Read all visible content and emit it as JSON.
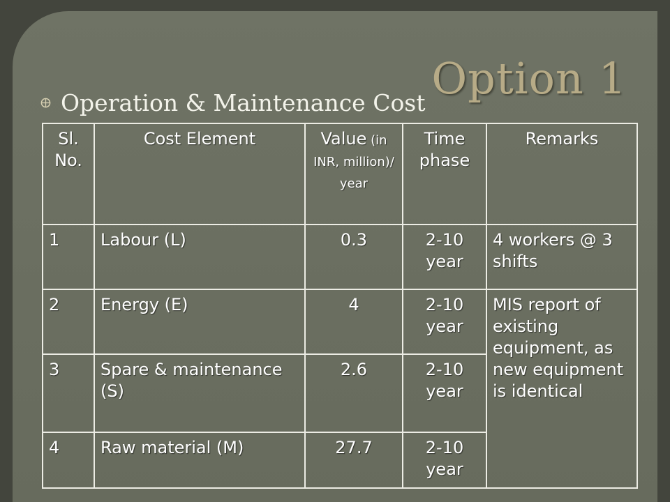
{
  "slide": {
    "title": "Option 1",
    "bullet": {
      "icon": "circle-cross-bullet-icon",
      "text": "Operation & Maintenance Cost"
    },
    "colors": {
      "background": "#6c7062",
      "title": "#b7ab87",
      "text": "#ffffff"
    }
  },
  "table": {
    "headers": {
      "sl_no": "Sl. No.",
      "cost_element": "Cost Element",
      "value_main": "Value",
      "value_unit": " (in INR, million)/ year",
      "time_phase": "Time phase",
      "remarks": "Remarks"
    },
    "rows": [
      {
        "sl_no": "1",
        "cost_element": "Labour (L)",
        "value": "0.3",
        "time_phase": "2-10 year",
        "remarks": "4 workers @ 3 shifts"
      },
      {
        "sl_no": "2",
        "cost_element": "Energy (E)",
        "value": "4",
        "time_phase": "2-10 year",
        "remarks": "MIS report of existing equipment, as new equipment is identical"
      },
      {
        "sl_no": "3",
        "cost_element": "Spare & maintenance (S)",
        "value": "2.6",
        "time_phase": "2-10 year"
      },
      {
        "sl_no": "4",
        "cost_element": "Raw material (M)",
        "value": "27.7",
        "time_phase": "2-10 year"
      }
    ]
  }
}
